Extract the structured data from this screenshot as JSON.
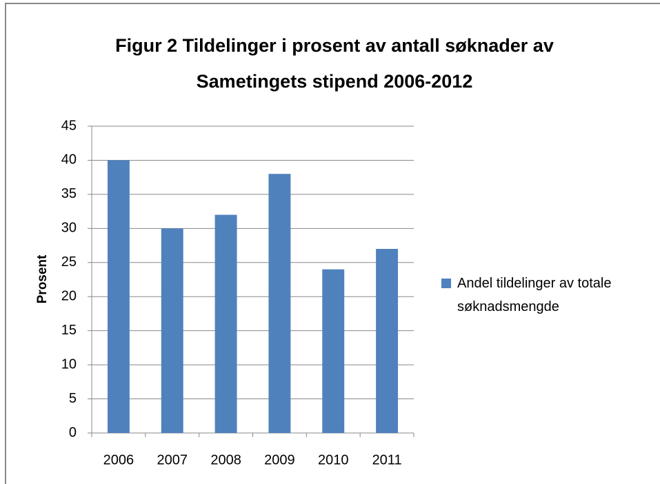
{
  "chart_data": {
    "type": "bar",
    "title": "Figur 2 Tildelinger i prosent av antall søknader av Sametingets stipend 2006-2012",
    "y_label": "Prosent",
    "categories": [
      "2006",
      "2007",
      "2008",
      "2009",
      "2010",
      "2011"
    ],
    "series": [
      {
        "name": "Andel tildelinger av totale søknadsmengde",
        "color": "#4f81bd",
        "values": [
          40,
          30,
          32,
          38,
          24,
          27
        ]
      }
    ],
    "ylim": [
      0,
      45
    ],
    "yticks": [
      0,
      5,
      10,
      15,
      20,
      25,
      30,
      35,
      40,
      45
    ],
    "grid": true,
    "legend": "right"
  }
}
